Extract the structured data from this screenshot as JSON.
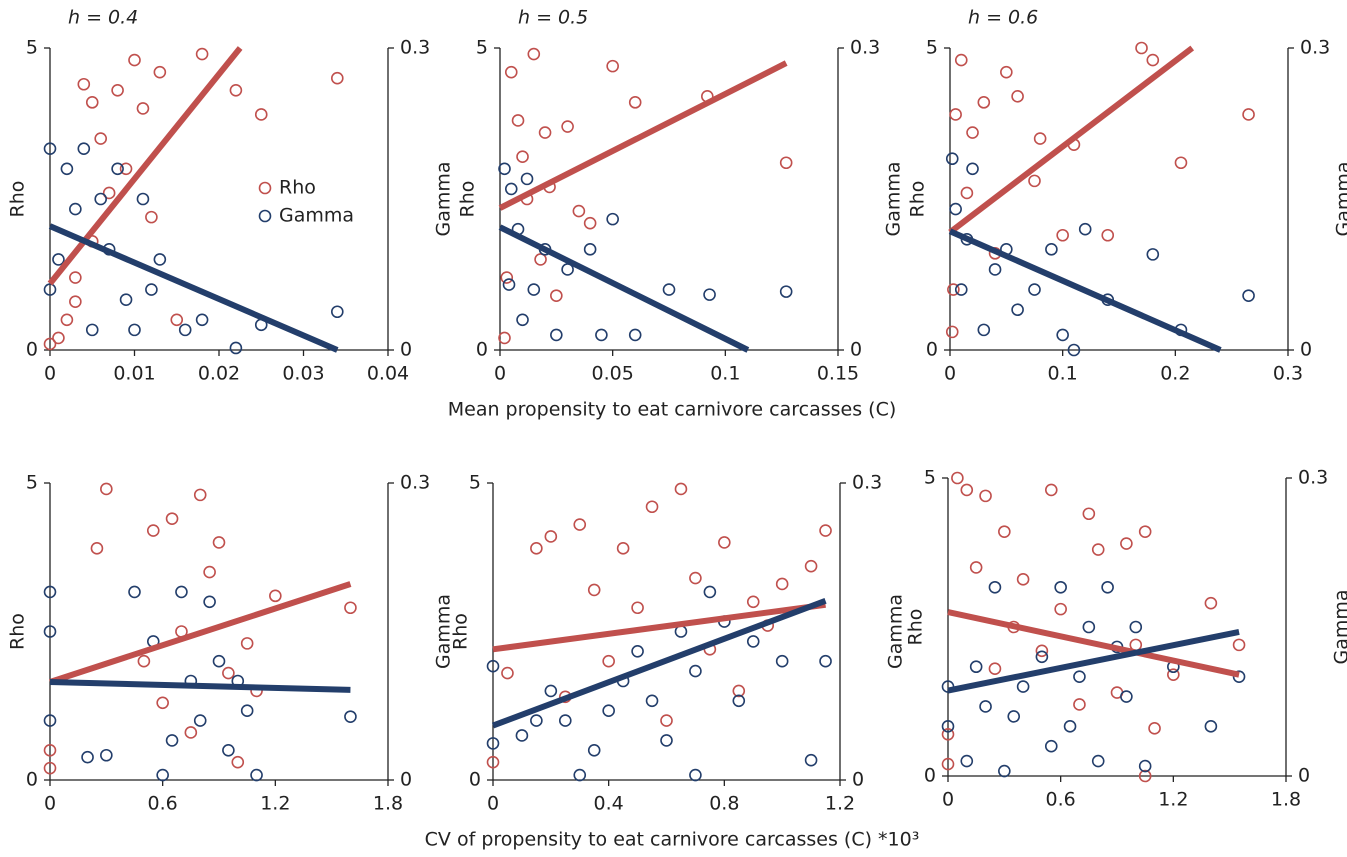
{
  "chart_data": [
    {
      "type": "scatter",
      "title": "h = 0.4",
      "ylabel": "Rho",
      "y2label": "Gamma",
      "legend": true,
      "xlim": [
        0,
        0.04
      ],
      "xticks": [
        0,
        0.01,
        0.02,
        0.03,
        0.04
      ],
      "ylim": [
        0,
        5
      ],
      "yticks": [
        0,
        5
      ],
      "y2lim": [
        0,
        0.3
      ],
      "y2ticks": [
        0,
        0.3
      ],
      "series": [
        {
          "name": "Rho",
          "color": "#c0504d",
          "x": [
            0.001,
            0.002,
            0.003,
            0.004,
            0.005,
            0.005,
            0.006,
            0.007,
            0.008,
            0.009,
            0.01,
            0.011,
            0.012,
            0.013,
            0.015,
            0.018,
            0.022,
            0.025,
            0.034,
            0.003,
            0
          ],
          "values": [
            0.2,
            0.5,
            1.2,
            4.4,
            4.1,
            1.8,
            3.5,
            2.6,
            4.3,
            3.0,
            4.8,
            4.0,
            2.2,
            4.6,
            0.5,
            4.9,
            4.3,
            3.9,
            4.5,
            0.8,
            0.1
          ],
          "fit": {
            "x": [
              0,
              0.0225
            ],
            "values": [
              1.1,
              5
            ]
          }
        },
        {
          "name": "Gamma",
          "color": "#233e6b",
          "axis": "y2",
          "x": [
            0,
            0,
            0.002,
            0.003,
            0.004,
            0.005,
            0.006,
            0.007,
            0.008,
            0.009,
            0.01,
            0.011,
            0.012,
            0.013,
            0.016,
            0.018,
            0.022,
            0.025,
            0.034,
            0.001
          ],
          "values": [
            0.2,
            0.06,
            0.18,
            0.14,
            0.2,
            0.02,
            0.15,
            0.1,
            0.18,
            0.05,
            0.02,
            0.15,
            0.06,
            0.09,
            0.02,
            0.03,
            0.002,
            0.025,
            0.038,
            0.09
          ],
          "fit": {
            "x": [
              0,
              0.034
            ],
            "values": [
              0.123,
              0
            ]
          }
        }
      ]
    },
    {
      "type": "scatter",
      "title": "h = 0.5",
      "ylabel": "Rho",
      "y2label": "Gamma",
      "xlabel": "Mean propensity to eat carnivore carcasses (C)",
      "xlim": [
        0,
        0.15
      ],
      "xticks": [
        0,
        0.05,
        0.1,
        0.15
      ],
      "ylim": [
        0,
        5
      ],
      "yticks": [
        0,
        5
      ],
      "y2lim": [
        0,
        0.3
      ],
      "y2ticks": [
        0,
        0.3
      ],
      "series": [
        {
          "name": "Rho",
          "color": "#c0504d",
          "x": [
            0.002,
            0.005,
            0.008,
            0.01,
            0.012,
            0.015,
            0.018,
            0.02,
            0.025,
            0.03,
            0.035,
            0.04,
            0.05,
            0.06,
            0.092,
            0.127,
            0.003,
            0.022
          ],
          "values": [
            0.2,
            4.6,
            3.8,
            3.2,
            2.5,
            4.9,
            1.5,
            3.6,
            0.9,
            3.7,
            2.3,
            2.1,
            4.7,
            4.1,
            4.2,
            3.1,
            1.2,
            2.7
          ],
          "fit": {
            "x": [
              0,
              0.127
            ],
            "values": [
              2.35,
              4.75
            ]
          }
        },
        {
          "name": "Gamma",
          "color": "#233e6b",
          "axis": "y2",
          "x": [
            0.002,
            0.005,
            0.008,
            0.01,
            0.012,
            0.015,
            0.02,
            0.025,
            0.03,
            0.04,
            0.045,
            0.05,
            0.06,
            0.075,
            0.093,
            0.127,
            0.004
          ],
          "values": [
            0.18,
            0.16,
            0.12,
            0.03,
            0.17,
            0.06,
            0.1,
            0.015,
            0.08,
            0.1,
            0.015,
            0.13,
            0.015,
            0.06,
            0.055,
            0.058,
            0.065
          ],
          "fit": {
            "x": [
              0,
              0.11
            ],
            "values": [
              0.122,
              0
            ]
          }
        }
      ]
    },
    {
      "type": "scatter",
      "title": "h = 0.6",
      "ylabel": "Rho",
      "y2label": "Gamma",
      "xlim": [
        0,
        0.3
      ],
      "xticks": [
        0,
        0.1,
        0.2,
        0.3
      ],
      "ylim": [
        0,
        5
      ],
      "yticks": [
        0,
        5
      ],
      "y2lim": [
        0,
        0.3
      ],
      "y2ticks": [
        0,
        0.3
      ],
      "series": [
        {
          "name": "Rho",
          "color": "#c0504d",
          "x": [
            0.002,
            0.005,
            0.01,
            0.015,
            0.02,
            0.03,
            0.04,
            0.05,
            0.06,
            0.075,
            0.08,
            0.1,
            0.11,
            0.14,
            0.17,
            0.18,
            0.205,
            0.265,
            0.003
          ],
          "values": [
            0.3,
            3.9,
            4.8,
            2.6,
            3.6,
            4.1,
            1.6,
            4.6,
            4.2,
            2.8,
            3.5,
            1.9,
            3.4,
            1.9,
            5.0,
            4.8,
            3.1,
            3.9,
            1.0
          ],
          "fit": {
            "x": [
              0,
              0.215
            ],
            "values": [
              1.95,
              5
            ]
          }
        },
        {
          "name": "Gamma",
          "color": "#233e6b",
          "axis": "y2",
          "x": [
            0.002,
            0.005,
            0.01,
            0.015,
            0.02,
            0.03,
            0.04,
            0.05,
            0.06,
            0.075,
            0.09,
            0.1,
            0.11,
            0.12,
            0.14,
            0.18,
            0.205,
            0.265
          ],
          "values": [
            0.19,
            0.14,
            0.06,
            0.11,
            0.18,
            0.02,
            0.08,
            0.1,
            0.04,
            0.06,
            0.1,
            0.015,
            0,
            0.12,
            0.05,
            0.095,
            0.02,
            0.054
          ],
          "fit": {
            "x": [
              0,
              0.24
            ],
            "values": [
              0.118,
              0
            ]
          }
        }
      ]
    },
    {
      "type": "scatter",
      "ylabel": "Rho",
      "y2label": "Gamma",
      "xlim": [
        0,
        1.8
      ],
      "xticks": [
        0,
        0.6,
        1.2,
        1.8
      ],
      "ylim": [
        0,
        5
      ],
      "yticks": [
        0,
        5
      ],
      "y2lim": [
        0,
        0.3
      ],
      "y2ticks": [
        0,
        0.3
      ],
      "series": [
        {
          "name": "Rho",
          "color": "#c0504d",
          "x": [
            0,
            0,
            0.25,
            0.3,
            0.55,
            0.6,
            0.65,
            0.7,
            0.75,
            0.8,
            0.85,
            0.9,
            0.95,
            1.0,
            1.05,
            1.1,
            1.2,
            1.6,
            0.5
          ],
          "values": [
            0.2,
            0.5,
            3.9,
            4.9,
            4.2,
            1.3,
            4.4,
            2.5,
            0.8,
            4.8,
            3.5,
            4.0,
            1.8,
            0.3,
            2.3,
            1.5,
            3.1,
            2.9,
            2.0
          ],
          "fit": {
            "x": [
              0,
              1.6
            ],
            "values": [
              1.65,
              3.3
            ]
          }
        },
        {
          "name": "Gamma",
          "color": "#233e6b",
          "axis": "y2",
          "x": [
            0,
            0,
            0,
            0.2,
            0.3,
            0.45,
            0.55,
            0.6,
            0.65,
            0.7,
            0.75,
            0.8,
            0.85,
            0.9,
            0.95,
            1.0,
            1.05,
            1.1,
            1.6
          ],
          "values": [
            0.19,
            0.06,
            0.15,
            0.023,
            0.025,
            0.19,
            0.14,
            0.005,
            0.04,
            0.19,
            0.1,
            0.06,
            0.18,
            0.12,
            0.03,
            0.1,
            0.07,
            0.005,
            0.064
          ],
          "fit": {
            "x": [
              0,
              1.6
            ],
            "values": [
              0.099,
              0.091
            ]
          }
        }
      ]
    },
    {
      "type": "scatter",
      "ylabel": "Rho",
      "y2label": "Gamma",
      "xlabel": "CV of propensity to eat carnivore carcasses (C) *10³",
      "xlim": [
        0,
        1.2
      ],
      "xticks": [
        0,
        0.4,
        0.8,
        1.2
      ],
      "ylim": [
        0,
        5
      ],
      "yticks": [
        0,
        5
      ],
      "y2lim": [
        0,
        0.3
      ],
      "y2ticks": [
        0,
        0.3
      ],
      "series": [
        {
          "name": "Rho",
          "color": "#c0504d",
          "x": [
            0,
            0.15,
            0.2,
            0.25,
            0.3,
            0.35,
            0.4,
            0.45,
            0.5,
            0.55,
            0.6,
            0.65,
            0.7,
            0.75,
            0.8,
            0.85,
            0.9,
            0.95,
            1.0,
            1.1,
            1.15,
            0.05
          ],
          "values": [
            0.3,
            3.9,
            4.1,
            1.4,
            4.3,
            3.2,
            2.0,
            3.9,
            2.9,
            4.6,
            1.0,
            4.9,
            3.4,
            2.2,
            4.0,
            1.5,
            3.0,
            2.6,
            3.3,
            3.6,
            4.2,
            1.8
          ],
          "fit": {
            "x": [
              0,
              1.15
            ],
            "values": [
              2.2,
              2.95
            ]
          }
        },
        {
          "name": "Gamma",
          "color": "#233e6b",
          "axis": "y2",
          "x": [
            0,
            0,
            0.1,
            0.15,
            0.2,
            0.25,
            0.3,
            0.35,
            0.4,
            0.45,
            0.5,
            0.55,
            0.6,
            0.65,
            0.7,
            0.75,
            0.8,
            0.85,
            0.9,
            1.0,
            1.1,
            1.15,
            0.7
          ],
          "values": [
            0.115,
            0.037,
            0.045,
            0.06,
            0.09,
            0.06,
            0.005,
            0.03,
            0.07,
            0.1,
            0.13,
            0.08,
            0.04,
            0.15,
            0.11,
            0.19,
            0.16,
            0.08,
            0.14,
            0.12,
            0.02,
            0.12,
            0.005
          ],
          "fit": {
            "x": [
              0,
              1.15
            ],
            "values": [
              0.055,
              0.181
            ]
          }
        }
      ]
    },
    {
      "type": "scatter",
      "ylabel": "Rho",
      "y2label": "Gamma",
      "xlim": [
        0,
        1.8
      ],
      "xticks": [
        0,
        0.6,
        1.2,
        1.8
      ],
      "ylim": [
        0,
        5
      ],
      "yticks": [
        0,
        5
      ],
      "y2lim": [
        0,
        0.3
      ],
      "y2ticks": [
        0,
        0.3
      ],
      "series": [
        {
          "name": "Rho",
          "color": "#c0504d",
          "x": [
            0,
            0,
            0.05,
            0.1,
            0.15,
            0.2,
            0.25,
            0.3,
            0.35,
            0.4,
            0.5,
            0.55,
            0.6,
            0.7,
            0.75,
            0.8,
            0.9,
            0.95,
            1.0,
            1.05,
            1.1,
            1.2,
            1.4,
            1.55,
            1.05
          ],
          "values": [
            0.2,
            0.7,
            5.0,
            4.8,
            3.5,
            4.7,
            1.8,
            4.1,
            2.5,
            3.3,
            2.1,
            4.8,
            2.8,
            1.2,
            4.4,
            3.8,
            1.4,
            3.9,
            2.2,
            4.1,
            0.8,
            1.7,
            2.9,
            2.2,
            0
          ],
          "fit": {
            "x": [
              0,
              1.55
            ],
            "values": [
              2.75,
              1.7
            ]
          }
        },
        {
          "name": "Gamma",
          "color": "#233e6b",
          "axis": "y2",
          "x": [
            0,
            0,
            0.1,
            0.15,
            0.2,
            0.25,
            0.3,
            0.35,
            0.4,
            0.5,
            0.55,
            0.6,
            0.65,
            0.7,
            0.75,
            0.8,
            0.85,
            0.9,
            0.95,
            1.0,
            1.05,
            1.2,
            1.4,
            1.55
          ],
          "values": [
            0.09,
            0.05,
            0.015,
            0.11,
            0.07,
            0.19,
            0.005,
            0.06,
            0.09,
            0.12,
            0.03,
            0.19,
            0.05,
            0.1,
            0.15,
            0.015,
            0.19,
            0.13,
            0.08,
            0.15,
            0.01,
            0.11,
            0.05,
            0.1
          ],
          "fit": {
            "x": [
              0,
              1.55
            ],
            "values": [
              0.086,
              0.145
            ]
          }
        }
      ]
    }
  ]
}
